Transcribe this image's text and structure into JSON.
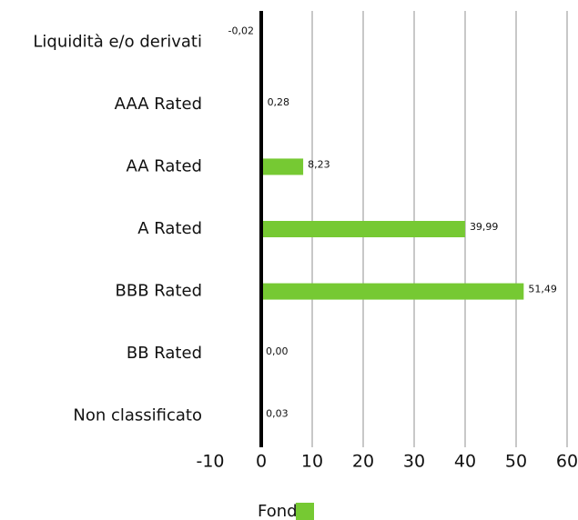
{
  "chart_data": {
    "type": "bar",
    "orientation": "horizontal",
    "categories": [
      "Liquidità e/o derivati",
      "AAA Rated",
      "AA Rated",
      "A Rated",
      "BBB Rated",
      "BB Rated",
      "Non classificato"
    ],
    "series": [
      {
        "name": "Fondo",
        "color": "#76c933",
        "values": [
          -0.02,
          0.28,
          8.23,
          39.99,
          51.49,
          0,
          0.03
        ],
        "value_labels": [
          "-0,02",
          "0,28",
          "8,23",
          "39,99",
          "51,49",
          "0,00",
          "0,03"
        ]
      }
    ],
    "xlim": [
      -10,
      60
    ],
    "xticks": [
      -10,
      0,
      10,
      20,
      30,
      40,
      50,
      60
    ],
    "grid": true,
    "legend": "bottom"
  }
}
